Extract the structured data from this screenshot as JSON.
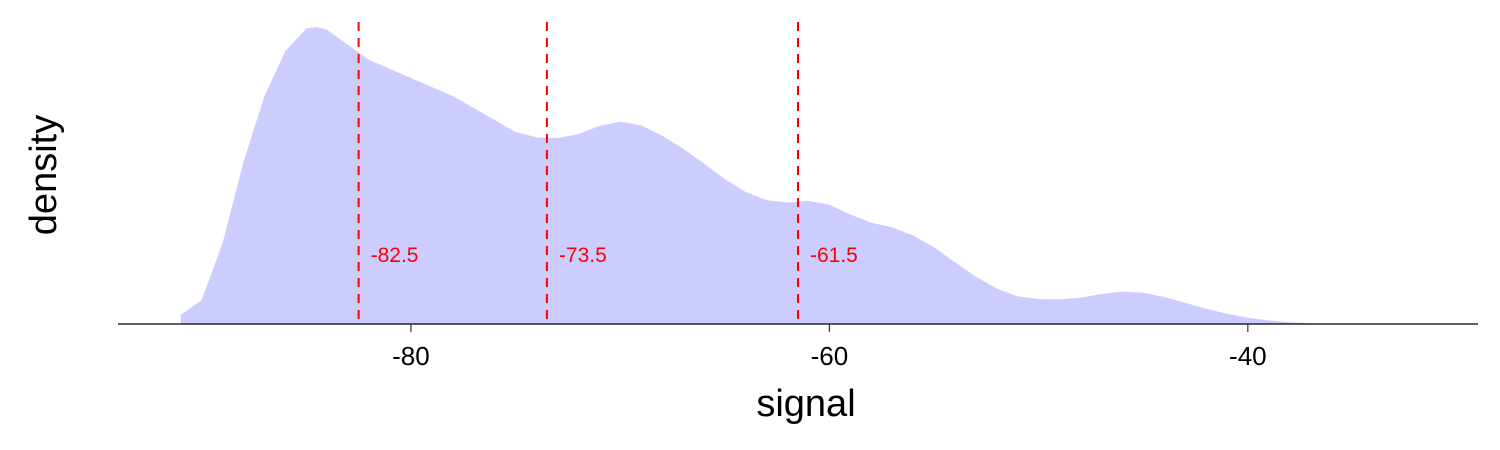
{
  "chart_data": {
    "type": "area",
    "xlabel": "signal",
    "ylabel": "density",
    "xlim": [
      -94,
      -29
    ],
    "ylim": [
      0,
      1
    ],
    "x_ticks": [
      -80,
      -60,
      -40
    ],
    "x_tick_labels": [
      "-80",
      "-60",
      "-40"
    ],
    "y_ticks_shown": false,
    "grid": false,
    "legend": "none",
    "fill_color": "#ccccff",
    "series": [
      {
        "x": [
          -91,
          -90,
          -89,
          -88,
          -87,
          -86,
          -85,
          -84.5,
          -84,
          -83,
          -82,
          -81,
          -80,
          -79,
          -78,
          -77,
          -76,
          -75,
          -74,
          -73,
          -72,
          -71,
          -70,
          -69,
          -68,
          -67,
          -66,
          -65,
          -64,
          -63,
          -62,
          -61,
          -60,
          -59,
          -58,
          -57,
          -56,
          -55,
          -54,
          -53,
          -52,
          -51,
          -50,
          -49,
          -48,
          -47,
          -46,
          -45,
          -44,
          -43,
          -42,
          -41,
          -40,
          -39,
          -38,
          -37,
          -36
        ],
        "y": [
          0.03,
          0.08,
          0.27,
          0.54,
          0.76,
          0.91,
          0.985,
          0.99,
          0.98,
          0.93,
          0.88,
          0.85,
          0.82,
          0.79,
          0.76,
          0.72,
          0.68,
          0.64,
          0.622,
          0.62,
          0.633,
          0.66,
          0.674,
          0.662,
          0.628,
          0.585,
          0.535,
          0.483,
          0.44,
          0.413,
          0.405,
          0.41,
          0.398,
          0.365,
          0.338,
          0.322,
          0.295,
          0.256,
          0.206,
          0.158,
          0.118,
          0.092,
          0.083,
          0.082,
          0.088,
          0.1,
          0.108,
          0.104,
          0.09,
          0.071,
          0.051,
          0.034,
          0.021,
          0.012,
          0.006,
          0.002,
          0.0
        ]
      }
    ],
    "vlines": [
      {
        "x": -82.5,
        "label": "-82.5",
        "color": "#ff0000",
        "style": "dashed"
      },
      {
        "x": -73.5,
        "label": "-73.5",
        "color": "#ff0000",
        "style": "dashed"
      },
      {
        "x": -61.5,
        "label": "-61.5",
        "color": "#ff0000",
        "style": "dashed"
      }
    ]
  }
}
